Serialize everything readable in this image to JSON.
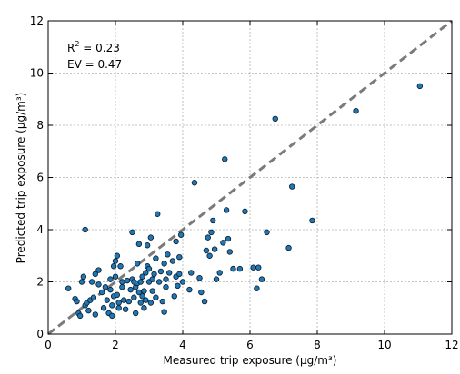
{
  "chart_data": {
    "type": "scatter",
    "xlabel": "Measured trip exposure (µg/m³)",
    "ylabel": "Predicted trip exposure (µg/m³)",
    "xlim": [
      0,
      12
    ],
    "ylim": [
      0,
      12
    ],
    "xticks": [
      "0",
      "2",
      "4",
      "6",
      "8",
      "10",
      "12"
    ],
    "yticks": [
      "0",
      "2",
      "4",
      "6",
      "8",
      "10",
      "12"
    ],
    "grid": true,
    "reference_line": {
      "style": "dashed",
      "color": "#7a7a7a",
      "from": [
        0,
        0
      ],
      "to": [
        12,
        12
      ]
    },
    "point_color": "#1f77b4",
    "annotations": {
      "r2_label": "R",
      "r2_sup": "2",
      "r2_value": " = 0.23",
      "ev": "EV = 0.47"
    },
    "points": [
      [
        0.6,
        1.75
      ],
      [
        0.8,
        1.35
      ],
      [
        0.85,
        1.25
      ],
      [
        0.9,
        0.8
      ],
      [
        0.95,
        0.7
      ],
      [
        1.0,
        2.0
      ],
      [
        1.05,
        2.2
      ],
      [
        1.1,
        1.1
      ],
      [
        1.1,
        4.0
      ],
      [
        1.15,
        1.2
      ],
      [
        1.2,
        0.9
      ],
      [
        1.25,
        1.3
      ],
      [
        1.3,
        2.0
      ],
      [
        1.35,
        1.4
      ],
      [
        1.4,
        0.75
      ],
      [
        1.4,
        2.3
      ],
      [
        1.5,
        2.45
      ],
      [
        1.5,
        1.9
      ],
      [
        1.6,
        1.6
      ],
      [
        1.65,
        1.0
      ],
      [
        1.7,
        1.8
      ],
      [
        1.75,
        1.3
      ],
      [
        1.8,
        0.8
      ],
      [
        1.85,
        1.7
      ],
      [
        1.85,
        2.1
      ],
      [
        1.9,
        0.7
      ],
      [
        1.9,
        1.1
      ],
      [
        1.95,
        1.45
      ],
      [
        1.95,
        2.6
      ],
      [
        2.0,
        2.8
      ],
      [
        2.0,
        2.2
      ],
      [
        2.05,
        1.5
      ],
      [
        2.05,
        3.0
      ],
      [
        2.1,
        1.2
      ],
      [
        2.1,
        1.0
      ],
      [
        2.15,
        2.6
      ],
      [
        2.2,
        1.8
      ],
      [
        2.2,
        2.0
      ],
      [
        2.25,
        1.3
      ],
      [
        2.3,
        0.95
      ],
      [
        2.35,
        2.05
      ],
      [
        2.4,
        1.25
      ],
      [
        2.45,
        1.7
      ],
      [
        2.5,
        2.1
      ],
      [
        2.5,
        3.9
      ],
      [
        2.55,
        1.4
      ],
      [
        2.55,
        2.0
      ],
      [
        2.6,
        1.8
      ],
      [
        2.6,
        0.8
      ],
      [
        2.65,
        2.7
      ],
      [
        2.65,
        1.95
      ],
      [
        2.7,
        3.45
      ],
      [
        2.7,
        1.6
      ],
      [
        2.75,
        1.2
      ],
      [
        2.75,
        2.0
      ],
      [
        2.8,
        1.45
      ],
      [
        2.8,
        2.2
      ],
      [
        2.85,
        1.0
      ],
      [
        2.85,
        1.65
      ],
      [
        2.9,
        2.35
      ],
      [
        2.9,
        1.3
      ],
      [
        2.95,
        2.6
      ],
      [
        2.95,
        3.4
      ],
      [
        3.0,
        2.0
      ],
      [
        3.0,
        2.5
      ],
      [
        3.05,
        1.2
      ],
      [
        3.05,
        3.7
      ],
      [
        3.1,
        2.1
      ],
      [
        3.1,
        1.65
      ],
      [
        3.15,
        2.3
      ],
      [
        3.2,
        2.9
      ],
      [
        3.2,
        1.4
      ],
      [
        3.25,
        4.6
      ],
      [
        3.3,
        2.0
      ],
      [
        3.35,
        2.4
      ],
      [
        3.4,
        1.25
      ],
      [
        3.45,
        0.85
      ],
      [
        3.45,
        2.7
      ],
      [
        3.5,
        1.8
      ],
      [
        3.5,
        2.1
      ],
      [
        3.55,
        3.05
      ],
      [
        3.6,
        2.35
      ],
      [
        3.7,
        2.8
      ],
      [
        3.75,
        1.45
      ],
      [
        3.8,
        3.55
      ],
      [
        3.8,
        2.2
      ],
      [
        3.85,
        1.85
      ],
      [
        3.9,
        2.95
      ],
      [
        3.9,
        2.3
      ],
      [
        3.95,
        3.8
      ],
      [
        4.0,
        2.0
      ],
      [
        4.2,
        1.7
      ],
      [
        4.25,
        2.35
      ],
      [
        4.35,
        5.8
      ],
      [
        4.5,
        2.15
      ],
      [
        4.55,
        1.6
      ],
      [
        4.65,
        1.25
      ],
      [
        4.7,
        3.2
      ],
      [
        4.75,
        3.7
      ],
      [
        4.8,
        3.0
      ],
      [
        4.85,
        3.9
      ],
      [
        4.9,
        4.35
      ],
      [
        4.95,
        3.25
      ],
      [
        5.0,
        2.1
      ],
      [
        5.1,
        2.35
      ],
      [
        5.2,
        3.5
      ],
      [
        5.25,
        6.7
      ],
      [
        5.3,
        4.75
      ],
      [
        5.35,
        3.65
      ],
      [
        5.4,
        3.15
      ],
      [
        5.5,
        2.5
      ],
      [
        5.7,
        2.5
      ],
      [
        5.85,
        4.7
      ],
      [
        6.1,
        2.55
      ],
      [
        6.2,
        1.75
      ],
      [
        6.25,
        2.55
      ],
      [
        6.35,
        2.1
      ],
      [
        6.5,
        3.9
      ],
      [
        6.75,
        8.25
      ],
      [
        7.15,
        3.3
      ],
      [
        7.25,
        5.65
      ],
      [
        7.85,
        4.35
      ],
      [
        9.15,
        8.55
      ],
      [
        11.05,
        9.5
      ]
    ]
  }
}
